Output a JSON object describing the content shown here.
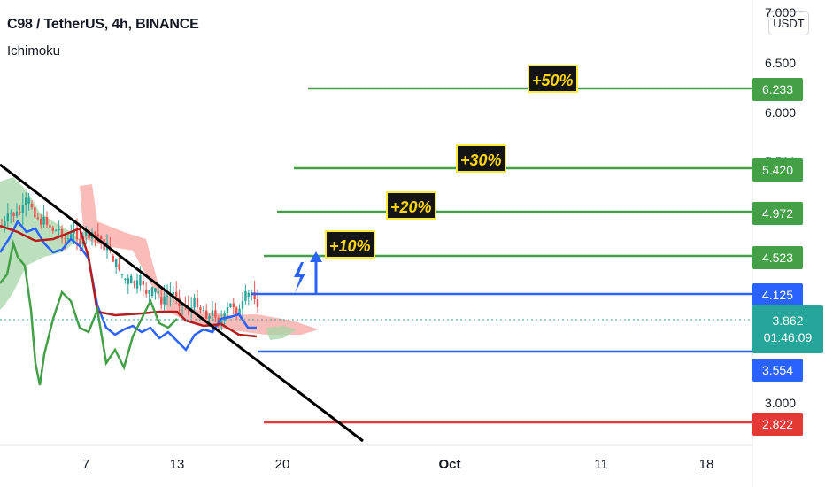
{
  "header": {
    "title": "C98 / TetherUS, 4h, BINANCE",
    "indicator": "Ichimoku",
    "currency": "USDT"
  },
  "chart_data": {
    "type": "line",
    "y_axis_ticks": [
      "7.000",
      "6.500",
      "6.000",
      "5.500",
      "3.000"
    ],
    "x_axis_ticks": [
      "7",
      "13",
      "20",
      "Oct",
      "11",
      "18"
    ],
    "levels": [
      {
        "value": "6.233",
        "numeric": 6.233,
        "color": "#43a047",
        "tag": "+50%"
      },
      {
        "value": "5.420",
        "numeric": 5.42,
        "color": "#43a047",
        "tag": "+30%"
      },
      {
        "value": "4.972",
        "numeric": 4.972,
        "color": "#43a047",
        "tag": "+20%"
      },
      {
        "value": "4.523",
        "numeric": 4.523,
        "color": "#43a047",
        "tag": "+10%"
      },
      {
        "value": "4.125",
        "numeric": 4.125,
        "color": "#2962ff",
        "tag": ""
      },
      {
        "value": "3.554",
        "numeric": 3.554,
        "color": "#2962ff",
        "tag": ""
      },
      {
        "value": "2.822",
        "numeric": 2.822,
        "color": "#e53935",
        "tag": ""
      }
    ],
    "last_price": {
      "value": "3.862",
      "numeric": 3.862,
      "countdown": "01:46:09",
      "color": "#26a69a"
    },
    "price_range_approx": [
      2.7,
      4.7
    ],
    "series": [
      {
        "role": "conversion-line",
        "color": "#2962ff"
      },
      {
        "role": "base-line",
        "color": "#b71c1c"
      },
      {
        "role": "lagging-span",
        "color": "#43a047"
      },
      {
        "role": "cloud",
        "colors": [
          "#f8a5a0",
          "#a5d6a7"
        ]
      }
    ],
    "trendline": {
      "color": "#000000",
      "direction": "descending"
    }
  }
}
